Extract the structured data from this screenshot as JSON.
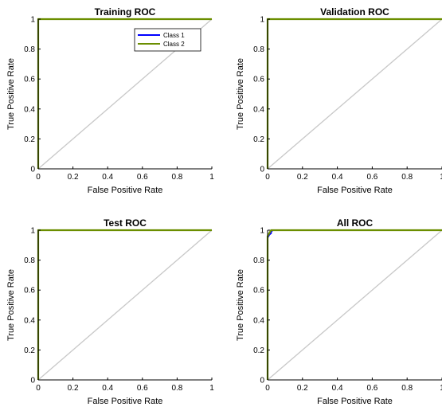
{
  "chart_data": [
    {
      "type": "line",
      "title": "Training ROC",
      "xlabel": "False Positive Rate",
      "ylabel": "True Positive Rate",
      "xlim": [
        0,
        1
      ],
      "ylim": [
        0,
        1
      ],
      "xticks": [
        "0",
        "0.2",
        "0.4",
        "0.6",
        "0.8",
        "1"
      ],
      "yticks": [
        "0",
        "0.2",
        "0.4",
        "0.6",
        "0.8",
        "1"
      ],
      "grid": false,
      "legend": "top-right",
      "series": [
        {
          "name": "Class 1",
          "color": "#0000ff",
          "x": [
            0,
            0,
            1
          ],
          "y": [
            0,
            1,
            1
          ]
        },
        {
          "name": "Class 2",
          "color": "#6b8e00",
          "x": [
            0,
            0,
            1
          ],
          "y": [
            0,
            1,
            1
          ]
        }
      ],
      "reference_line": {
        "color": "#c8c8c8",
        "x": [
          0,
          1
        ],
        "y": [
          0,
          1
        ]
      }
    },
    {
      "type": "line",
      "title": "Validation ROC",
      "xlabel": "False Positive Rate",
      "ylabel": "True Positive Rate",
      "xlim": [
        0,
        1
      ],
      "ylim": [
        0,
        1
      ],
      "xticks": [
        "0",
        "0.2",
        "0.4",
        "0.6",
        "0.8",
        "1"
      ],
      "yticks": [
        "0",
        "0.2",
        "0.4",
        "0.6",
        "0.8",
        "1"
      ],
      "grid": false,
      "series": [
        {
          "color": "#0000ff",
          "x": [
            0,
            0,
            1
          ],
          "y": [
            0,
            1,
            1
          ]
        },
        {
          "color": "#6b8e00",
          "x": [
            0,
            0,
            1
          ],
          "y": [
            0,
            1,
            1
          ]
        }
      ],
      "reference_line": {
        "color": "#c8c8c8",
        "x": [
          0,
          1
        ],
        "y": [
          0,
          1
        ]
      }
    },
    {
      "type": "line",
      "title": "Test ROC",
      "xlabel": "False Positive Rate",
      "ylabel": "True Positive Rate",
      "xlim": [
        0,
        1
      ],
      "ylim": [
        0,
        1
      ],
      "xticks": [
        "0",
        "0.2",
        "0.4",
        "0.6",
        "0.8",
        "1"
      ],
      "yticks": [
        "0",
        "0.2",
        "0.4",
        "0.6",
        "0.8",
        "1"
      ],
      "grid": false,
      "series": [
        {
          "color": "#0000ff",
          "x": [
            0,
            0,
            1
          ],
          "y": [
            0,
            1,
            1
          ]
        },
        {
          "color": "#6b8e00",
          "x": [
            0,
            0,
            1
          ],
          "y": [
            0,
            1,
            1
          ]
        }
      ],
      "reference_line": {
        "color": "#c8c8c8",
        "x": [
          0,
          1
        ],
        "y": [
          0,
          1
        ]
      }
    },
    {
      "type": "line",
      "title": "All ROC",
      "xlabel": "False Positive Rate",
      "ylabel": "True Positive Rate",
      "xlim": [
        0,
        1
      ],
      "ylim": [
        0,
        1
      ],
      "xticks": [
        "0",
        "0.2",
        "0.4",
        "0.6",
        "0.8",
        "1"
      ],
      "yticks": [
        "0",
        "0.2",
        "0.4",
        "0.6",
        "0.8",
        "1"
      ],
      "grid": false,
      "series": [
        {
          "color": "#0000ff",
          "x": [
            0,
            0,
            0.01,
            0.02,
            0.02,
            0.03,
            1
          ],
          "y": [
            0,
            0.95,
            0.97,
            0.98,
            0.99,
            1,
            1
          ]
        },
        {
          "color": "#6b8e00",
          "x": [
            0,
            0,
            0.02,
            1
          ],
          "y": [
            0,
            0.96,
            1,
            1
          ]
        }
      ],
      "reference_line": {
        "color": "#c8c8c8",
        "x": [
          0,
          1
        ],
        "y": [
          0,
          1
        ]
      }
    }
  ]
}
